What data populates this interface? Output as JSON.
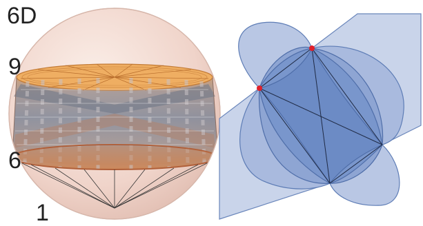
{
  "labels": {
    "top_left": "6D",
    "upper_band": "9",
    "lower_band": "6",
    "bottom": "1"
  },
  "colors": {
    "sphere_fill": "#f2d6cc",
    "sphere_edge": "#c9a79a",
    "band_orange": "#d9893c",
    "band_gray": "#8a8f9c",
    "polytope_fill": "#6f8fc4",
    "polytope_edge": "#4e6ea8",
    "vertex_marker": "#e0202a",
    "line": "#222222"
  }
}
